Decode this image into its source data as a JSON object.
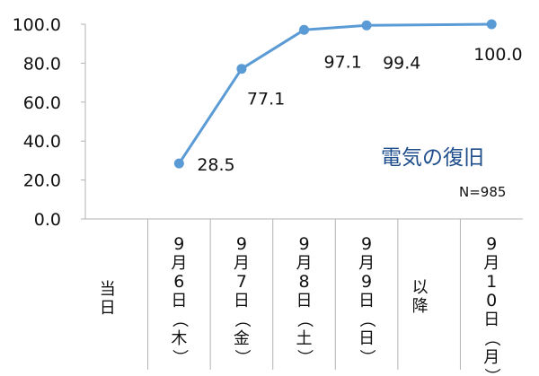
{
  "chart_data": {
    "type": "line",
    "title": "電気の復旧",
    "note": "N=985",
    "categories": [
      "当日",
      "9月6日（木）",
      "9月7日（金）",
      "9月8日（土）",
      "9月9日（日）",
      "以降",
      "9月10日（月）"
    ],
    "points": [
      {
        "category": "9月6日（木）",
        "value": 28.5
      },
      {
        "category": "9月7日（金）",
        "value": 77.1
      },
      {
        "category": "9月8日（土）",
        "value": 97.1
      },
      {
        "category": "9月9日（日）",
        "value": 99.4
      },
      {
        "category": "9月10日（月）",
        "value": 100.0
      }
    ],
    "data_labels": [
      "28.5",
      "77.1",
      "97.1",
      "99.4",
      "100.0"
    ],
    "y_ticks": [
      "0.0",
      "20.0",
      "40.0",
      "60.0",
      "80.0",
      "100.0"
    ],
    "ylim": [
      0,
      100
    ],
    "grid": false,
    "line_color": "#5b9bd5"
  }
}
